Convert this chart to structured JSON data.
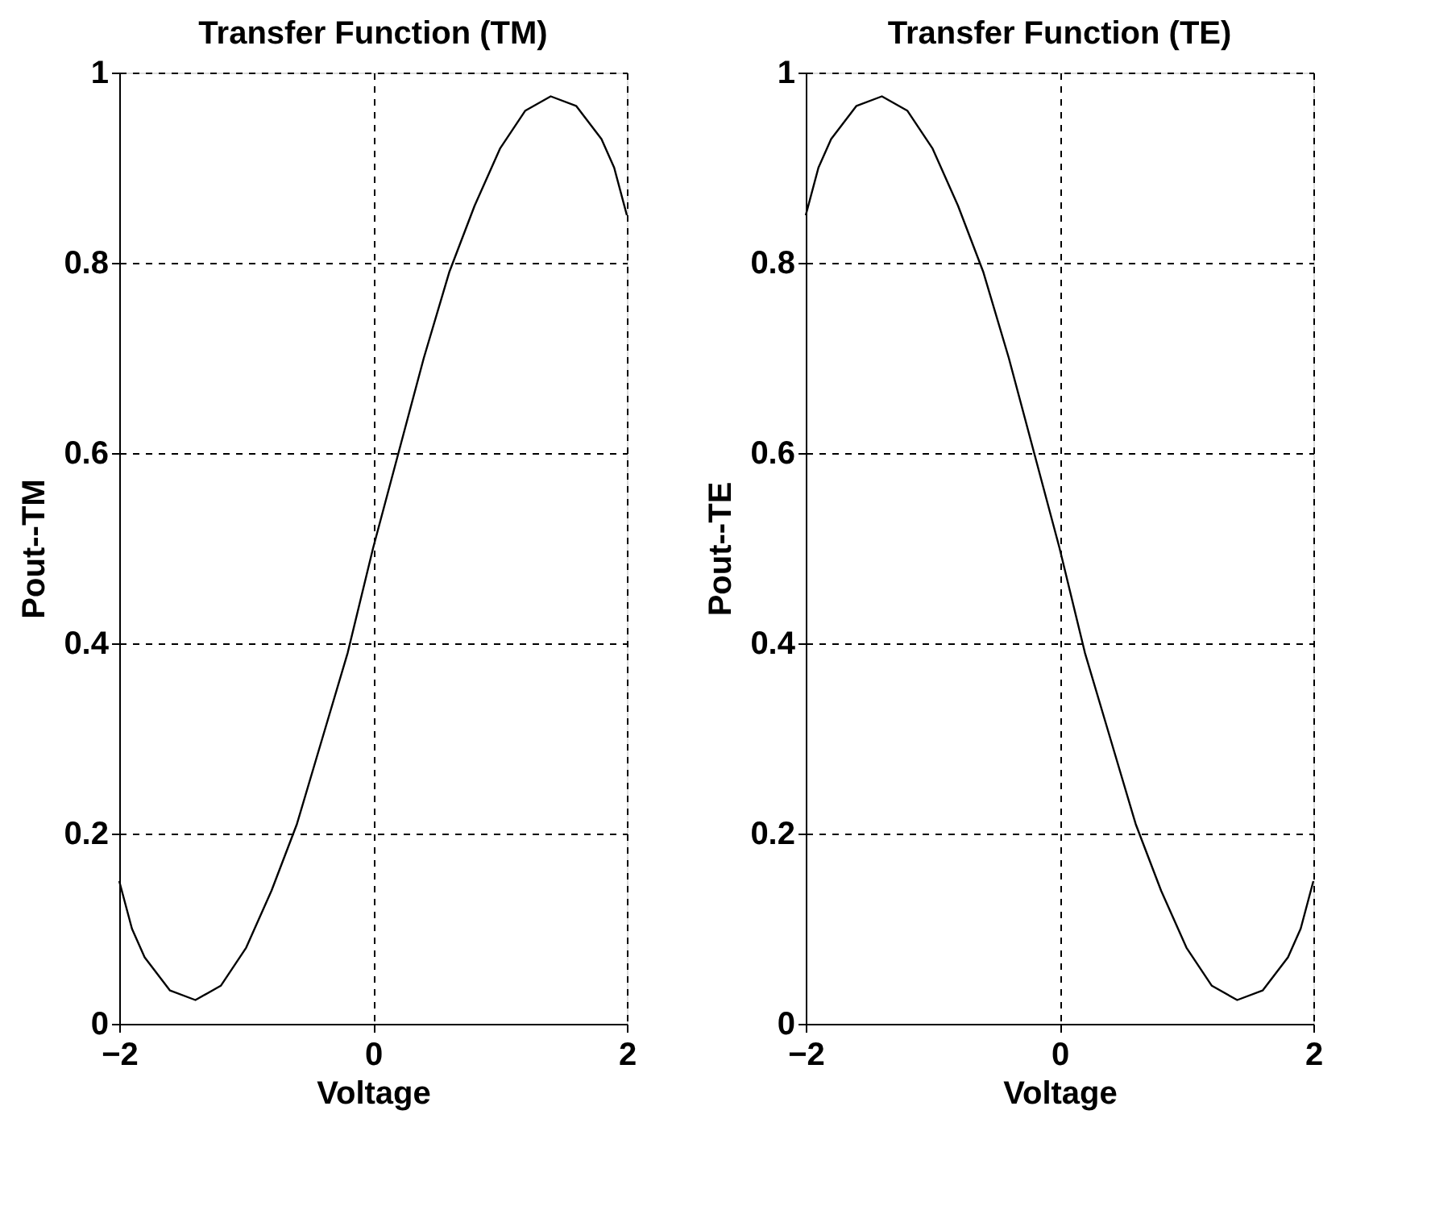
{
  "chart_data": [
    {
      "type": "line",
      "title": "Transfer Function (TM)",
      "xlabel": "Voltage",
      "ylabel": "Pout--TM",
      "x": [
        -2,
        -1.9,
        -1.8,
        -1.6,
        -1.4,
        -1.2,
        -1.0,
        -0.8,
        -0.6,
        -0.4,
        -0.2,
        0,
        0.2,
        0.4,
        0.6,
        0.8,
        1.0,
        1.2,
        1.4,
        1.6,
        1.8,
        1.9,
        2
      ],
      "series": [
        {
          "color": "#000000",
          "values": [
            0.15,
            0.1,
            0.07,
            0.035,
            0.025,
            0.04,
            0.08,
            0.14,
            0.21,
            0.3,
            0.39,
            0.5,
            0.6,
            0.7,
            0.79,
            0.86,
            0.92,
            0.96,
            0.975,
            0.965,
            0.93,
            0.9,
            0.85
          ]
        }
      ],
      "xlim": [
        -2,
        2
      ],
      "ylim": [
        0,
        1
      ],
      "xticks": [
        -2,
        0,
        2
      ],
      "yticks": [
        0,
        0.2,
        0.4,
        0.6,
        0.8,
        1
      ],
      "grid": true,
      "marker": "none",
      "line_style": "solid"
    },
    {
      "type": "line",
      "title": "Transfer Function (TE)",
      "xlabel": "Voltage",
      "ylabel": "Pout--TE",
      "x": [
        -2,
        -1.9,
        -1.8,
        -1.6,
        -1.4,
        -1.2,
        -1.0,
        -0.8,
        -0.6,
        -0.4,
        -0.2,
        0,
        0.2,
        0.4,
        0.6,
        0.8,
        1.0,
        1.2,
        1.4,
        1.6,
        1.8,
        1.9,
        2
      ],
      "series": [
        {
          "color": "#000000",
          "values": [
            0.85,
            0.9,
            0.93,
            0.965,
            0.975,
            0.96,
            0.92,
            0.86,
            0.79,
            0.7,
            0.6,
            0.5,
            0.39,
            0.3,
            0.21,
            0.14,
            0.08,
            0.04,
            0.025,
            0.035,
            0.07,
            0.1,
            0.15
          ]
        }
      ],
      "xlim": [
        -2,
        2
      ],
      "ylim": [
        0,
        1
      ],
      "xticks": [
        -2,
        0,
        2
      ],
      "yticks": [
        0,
        0.2,
        0.4,
        0.6,
        0.8,
        1
      ],
      "grid": true,
      "marker": "none",
      "line_style": "solid"
    }
  ]
}
